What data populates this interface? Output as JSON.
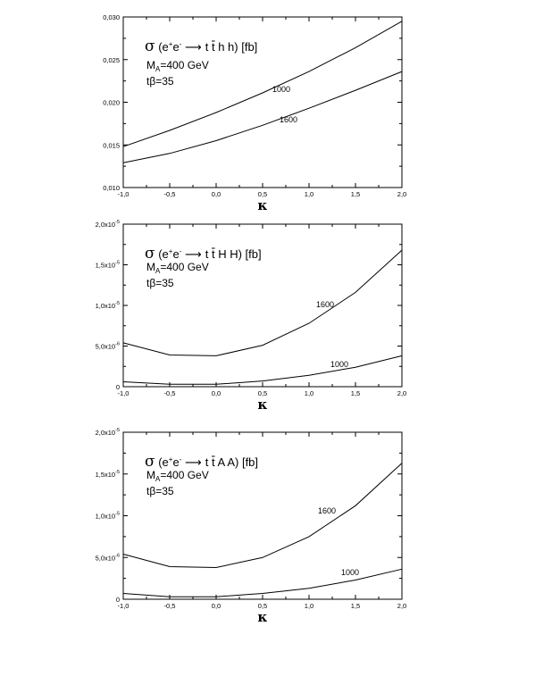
{
  "chart_data": [
    {
      "type": "line",
      "title_lhs": "σ (e",
      "title_sup1": "+",
      "title_e2": "e",
      "title_sup2": "-",
      "title_rhs": "t t h h) [fb]",
      "mass_label": "M",
      "mass_sub": "A",
      "mass_value": "=400 GeV",
      "tb_label": "tβ=35",
      "xlabel": "κ",
      "xlim": [
        -1.0,
        2.0
      ],
      "ylim": [
        0.01,
        0.03
      ],
      "x_ticks": [
        "-1,0",
        "-0,5",
        "0,0",
        "0,5",
        "1,0",
        "1,5",
        "2,0"
      ],
      "y_ticks": [
        "0,010",
        "0,015",
        "0,020",
        "0,025",
        "0,030"
      ],
      "y_tick_values": [
        0.01,
        0.015,
        0.02,
        0.025,
        0.03
      ],
      "x": [
        -1.0,
        -0.5,
        0.0,
        0.5,
        1.0,
        1.5,
        2.0
      ],
      "series": [
        {
          "name": "1000",
          "values": [
            0.0148,
            0.0167,
            0.0188,
            0.0211,
            0.0236,
            0.0264,
            0.0295
          ]
        },
        {
          "name": "1600",
          "values": [
            0.0129,
            0.014,
            0.0155,
            0.0173,
            0.0193,
            0.0214,
            0.0236
          ]
        }
      ]
    },
    {
      "type": "line",
      "title_lhs": "σ (e",
      "title_sup1": "+",
      "title_e2": "e",
      "title_sup2": "-",
      "title_rhs": "t t H H) [fb]",
      "mass_label": "M",
      "mass_sub": "A",
      "mass_value": "=400 GeV",
      "tb_label": "tβ=35",
      "xlabel": "κ",
      "xlim": [
        -1.0,
        2.0
      ],
      "ylim": [
        0,
        2e-05
      ],
      "x_ticks": [
        "-1,0",
        "-0,5",
        "0,0",
        "0,5",
        "1,0",
        "1,5",
        "2,0"
      ],
      "y_ticks": [
        "0",
        "5,0x10",
        "1,0x10",
        "1,5x10",
        "2,0x10"
      ],
      "y_tick_exps": [
        "",
        "-6",
        "-5",
        "-5",
        "-5"
      ],
      "y_tick_values": [
        0,
        5e-06,
        1e-05,
        1.5e-05,
        2e-05
      ],
      "x": [
        -1.0,
        -0.5,
        0.0,
        0.5,
        1.0,
        1.5,
        2.0
      ],
      "series": [
        {
          "name": "1600",
          "values": [
            5.4e-06,
            3.9e-06,
            3.8e-06,
            5.1e-06,
            7.8e-06,
            1.16e-05,
            1.68e-05
          ]
        },
        {
          "name": "1000",
          "values": [
            6e-07,
            3e-07,
            3e-07,
            7e-07,
            1.4e-06,
            2.4e-06,
            3.8e-06
          ]
        }
      ]
    },
    {
      "type": "line",
      "title_lhs": "σ (e",
      "title_sup1": "+",
      "title_e2": "e",
      "title_sup2": "-",
      "title_rhs": "t t A A) [fb]",
      "mass_label": "M",
      "mass_sub": "A",
      "mass_value": "=400 GeV",
      "tb_label": "tβ=35",
      "xlabel": "κ",
      "xlim": [
        -1.0,
        2.0
      ],
      "ylim": [
        0,
        2e-05
      ],
      "x_ticks": [
        "-1,0",
        "-0,5",
        "0,0",
        "0,5",
        "1,0",
        "1,5",
        "2,0"
      ],
      "y_ticks": [
        "0",
        "5,0x10",
        "1,0x10",
        "1,5x10",
        "2,0x10"
      ],
      "y_tick_exps": [
        "",
        "-6",
        "-5",
        "-5",
        "-5"
      ],
      "y_tick_values": [
        0,
        5e-06,
        1e-05,
        1.5e-05,
        2e-05
      ],
      "x": [
        -1.0,
        -0.5,
        0.0,
        0.5,
        1.0,
        1.5,
        2.0
      ],
      "series": [
        {
          "name": "1600",
          "values": [
            5.4e-06,
            3.9e-06,
            3.8e-06,
            5e-06,
            7.5e-06,
            1.12e-05,
            1.63e-05
          ]
        },
        {
          "name": "1000",
          "values": [
            7e-07,
            3e-07,
            3e-07,
            7e-07,
            1.3e-06,
            2.3e-06,
            3.6e-06
          ]
        }
      ]
    }
  ]
}
